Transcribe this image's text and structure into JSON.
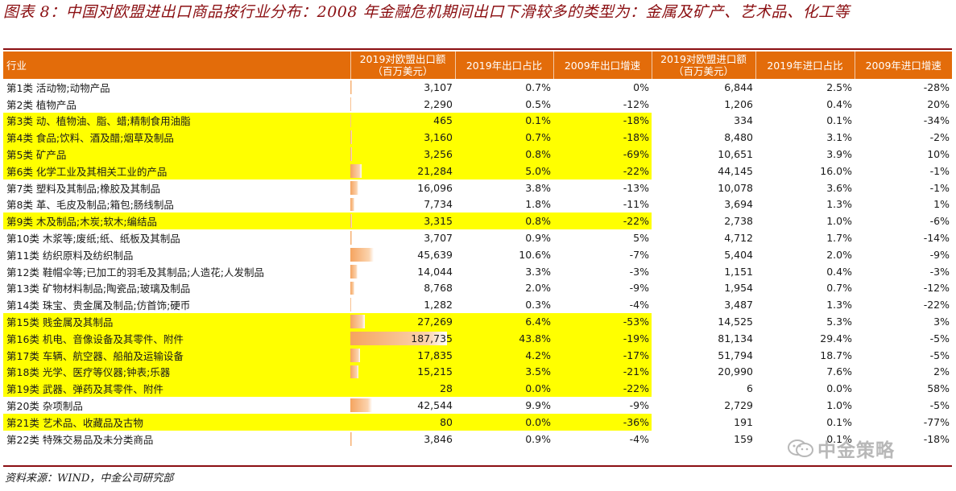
{
  "title": "图表 8：中国对欧盟进出口商品按行业分布：2008 年金融危机期间出口下滑较多的类型为：金属及矿产、艺术品、化工等",
  "source": "资料来源：WIND，中金公司研究部",
  "watermark": "中金策略",
  "header": {
    "industry": "行业",
    "export_value": "2019对欧盟出口额（百万美元）",
    "export_share": "2019年出口占比",
    "export_growth": "2009年出口增速",
    "import_value": "2019对欧盟进口额（百万美元）",
    "import_share": "2019年进口占比",
    "import_growth": "2009年进口增速"
  },
  "colors": {
    "header_bg": "#e36c0a",
    "highlight": "#ffff00",
    "title": "#8b0f12",
    "bar": "#f5a45f"
  },
  "rows": [
    {
      "name": "第1类 活动物;动物产品",
      "exp": "3,107",
      "exp_share": "0.7%",
      "share_pct": 0.7,
      "exp_g": "0%",
      "imp": "6,844",
      "imp_share": "2.5%",
      "imp_g": "-28%",
      "hl": false
    },
    {
      "name": "第2类 植物产品",
      "exp": "2,290",
      "exp_share": "0.5%",
      "share_pct": 0.5,
      "exp_g": "-12%",
      "imp": "1,206",
      "imp_share": "0.4%",
      "imp_g": "20%",
      "hl": false
    },
    {
      "name": "第3类 动、植物油、脂、蜡;精制食用油脂",
      "exp": "465",
      "exp_share": "0.1%",
      "share_pct": 0.1,
      "exp_g": "-18%",
      "imp": "334",
      "imp_share": "0.1%",
      "imp_g": "-34%",
      "hl": true
    },
    {
      "name": "第4类 食品;饮料、酒及醋;烟草及制品",
      "exp": "3,160",
      "exp_share": "0.7%",
      "share_pct": 0.7,
      "exp_g": "-18%",
      "imp": "8,480",
      "imp_share": "3.1%",
      "imp_g": "-2%",
      "hl": true
    },
    {
      "name": "第5类 矿产品",
      "exp": "3,256",
      "exp_share": "0.8%",
      "share_pct": 0.8,
      "exp_g": "-69%",
      "imp": "10,651",
      "imp_share": "3.9%",
      "imp_g": "10%",
      "hl": true
    },
    {
      "name": "第6类 化学工业及其相关工业的产品",
      "exp": "21,284",
      "exp_share": "5.0%",
      "share_pct": 5.0,
      "exp_g": "-22%",
      "imp": "44,145",
      "imp_share": "16.0%",
      "imp_g": "-1%",
      "hl": true
    },
    {
      "name": "第7类 塑料及其制品;橡胶及其制品",
      "exp": "16,096",
      "exp_share": "3.8%",
      "share_pct": 3.8,
      "exp_g": "-13%",
      "imp": "10,078",
      "imp_share": "3.6%",
      "imp_g": "-1%",
      "hl": false
    },
    {
      "name": "第8类 革、毛皮及制品;箱包;肠线制品",
      "exp": "7,734",
      "exp_share": "1.8%",
      "share_pct": 1.8,
      "exp_g": "-11%",
      "imp": "3,694",
      "imp_share": "1.3%",
      "imp_g": "1%",
      "hl": false
    },
    {
      "name": "第9类 木及制品;木炭;软木;编结品",
      "exp": "3,315",
      "exp_share": "0.8%",
      "share_pct": 0.8,
      "exp_g": "-22%",
      "imp": "2,738",
      "imp_share": "1.0%",
      "imp_g": "-6%",
      "hl": true
    },
    {
      "name": "第10类 木浆等;废纸;纸、纸板及其制品",
      "exp": "3,707",
      "exp_share": "0.9%",
      "share_pct": 0.9,
      "exp_g": "5%",
      "imp": "4,712",
      "imp_share": "1.7%",
      "imp_g": "-14%",
      "hl": false
    },
    {
      "name": "第11类 纺织原料及纺织制品",
      "exp": "45,639",
      "exp_share": "10.6%",
      "share_pct": 10.6,
      "exp_g": "-7%",
      "imp": "5,404",
      "imp_share": "2.0%",
      "imp_g": "-9%",
      "hl": false
    },
    {
      "name": "第12类 鞋帽伞等;已加工的羽毛及其制品;人造花;人发制品",
      "exp": "14,044",
      "exp_share": "3.3%",
      "share_pct": 3.3,
      "exp_g": "-3%",
      "imp": "1,151",
      "imp_share": "0.4%",
      "imp_g": "-3%",
      "hl": false
    },
    {
      "name": "第13类 矿物材料制品;陶瓷品;玻璃及制品",
      "exp": "8,768",
      "exp_share": "2.0%",
      "share_pct": 2.0,
      "exp_g": "-9%",
      "imp": "1,954",
      "imp_share": "0.7%",
      "imp_g": "-12%",
      "hl": false
    },
    {
      "name": "第14类 珠宝、贵金属及制品;仿首饰;硬币",
      "exp": "1,282",
      "exp_share": "0.3%",
      "share_pct": 0.3,
      "exp_g": "-4%",
      "imp": "3,487",
      "imp_share": "1.3%",
      "imp_g": "-22%",
      "hl": false
    },
    {
      "name": "第15类 贱金属及其制品",
      "exp": "27,269",
      "exp_share": "6.4%",
      "share_pct": 6.4,
      "exp_g": "-53%",
      "imp": "14,525",
      "imp_share": "5.3%",
      "imp_g": "3%",
      "hl": true
    },
    {
      "name": "第16类 机电、音像设备及其零件、附件",
      "exp": "187,735",
      "exp_share": "43.8%",
      "share_pct": 43.8,
      "exp_g": "-19%",
      "imp": "81,134",
      "imp_share": "29.4%",
      "imp_g": "-5%",
      "hl": true
    },
    {
      "name": "第17类 车辆、航空器、船舶及运输设备",
      "exp": "17,835",
      "exp_share": "4.2%",
      "share_pct": 4.2,
      "exp_g": "-17%",
      "imp": "51,794",
      "imp_share": "18.7%",
      "imp_g": "-5%",
      "hl": true
    },
    {
      "name": "第18类 光学、医疗等仪器;钟表;乐器",
      "exp": "15,215",
      "exp_share": "3.5%",
      "share_pct": 3.5,
      "exp_g": "-21%",
      "imp": "20,990",
      "imp_share": "7.6%",
      "imp_g": "2%",
      "hl": true
    },
    {
      "name": "第19类 武器、弹药及其零件、附件",
      "exp": "28",
      "exp_share": "0.0%",
      "share_pct": 0.0,
      "exp_g": "-22%",
      "imp": "6",
      "imp_share": "0.0%",
      "imp_g": "58%",
      "hl": true
    },
    {
      "name": "第20类 杂项制品",
      "exp": "42,544",
      "exp_share": "9.9%",
      "share_pct": 9.9,
      "exp_g": "-9%",
      "imp": "2,729",
      "imp_share": "1.0%",
      "imp_g": "-5%",
      "hl": false
    },
    {
      "name": "第21类 艺术品、收藏品及古物",
      "exp": "80",
      "exp_share": "0.0%",
      "share_pct": 0.0,
      "exp_g": "-36%",
      "imp": "191",
      "imp_share": "0.1%",
      "imp_g": "-77%",
      "hl": true
    },
    {
      "name": "第22类 特殊交易品及未分类商品",
      "exp": "3,846",
      "exp_share": "0.9%",
      "share_pct": 0.9,
      "exp_g": "-4%",
      "imp": "159",
      "imp_share": "0.1%",
      "imp_g": "-18%",
      "hl": false
    }
  ]
}
